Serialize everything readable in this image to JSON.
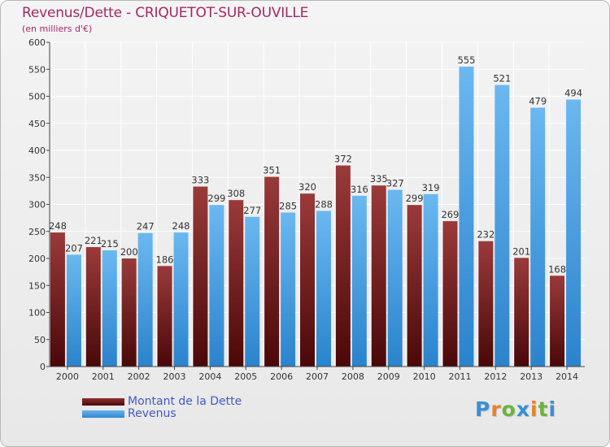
{
  "header": {
    "title": "Revenus/Dette - CRIQUETOT-SUR-OUVILLE",
    "subtitle": "(en milliers d'€)"
  },
  "chart_data": {
    "type": "bar",
    "title": "Revenus/Dette - CRIQUETOT-SUR-OUVILLE",
    "ylabel": "(en milliers d'€)",
    "ylim": [
      0,
      600
    ],
    "yticks": [
      0,
      50,
      100,
      150,
      200,
      250,
      300,
      350,
      400,
      450,
      500,
      550,
      600
    ],
    "grid": true,
    "legend_position": "bottom-left",
    "categories": [
      "2000",
      "2001",
      "2002",
      "2003",
      "2004",
      "2005",
      "2006",
      "2007",
      "2008",
      "2009",
      "2010",
      "2011",
      "2012",
      "2013",
      "2014"
    ],
    "series": [
      {
        "name": "Montant de la Dette",
        "color": "#7a1f1f",
        "values": [
          248,
          221,
          200,
          186,
          333,
          308,
          351,
          320,
          372,
          335,
          299,
          269,
          232,
          201,
          168
        ],
        "labels": [
          "248",
          "221",
          "200",
          "186",
          "333",
          "308",
          "351",
          "320",
          "372",
          "335",
          "299",
          "269",
          "232",
          "201",
          "168"
        ]
      },
      {
        "name": "Revenus",
        "color": "#4aa3e6",
        "values": [
          207,
          215,
          247,
          248,
          299,
          277,
          285,
          288,
          316,
          327,
          319,
          555,
          521,
          479,
          494
        ],
        "labels": [
          "207",
          "215",
          "247",
          "248",
          "299",
          "277",
          "285",
          "288",
          "316",
          "327",
          "319",
          "555",
          "521",
          "479",
          "494"
        ]
      }
    ]
  },
  "legend": {
    "debt_label": "Montant de la Dette",
    "revenue_label": "Revenus"
  },
  "logo": {
    "letters": [
      "P",
      "r",
      "o",
      "x",
      "i",
      "t",
      "i"
    ],
    "colors": [
      "#3a8fd6",
      "#e8822a",
      "#6cb33e",
      "#3a8fd6",
      "#e8822a",
      "#6cb33e",
      "#3a8fd6"
    ]
  }
}
